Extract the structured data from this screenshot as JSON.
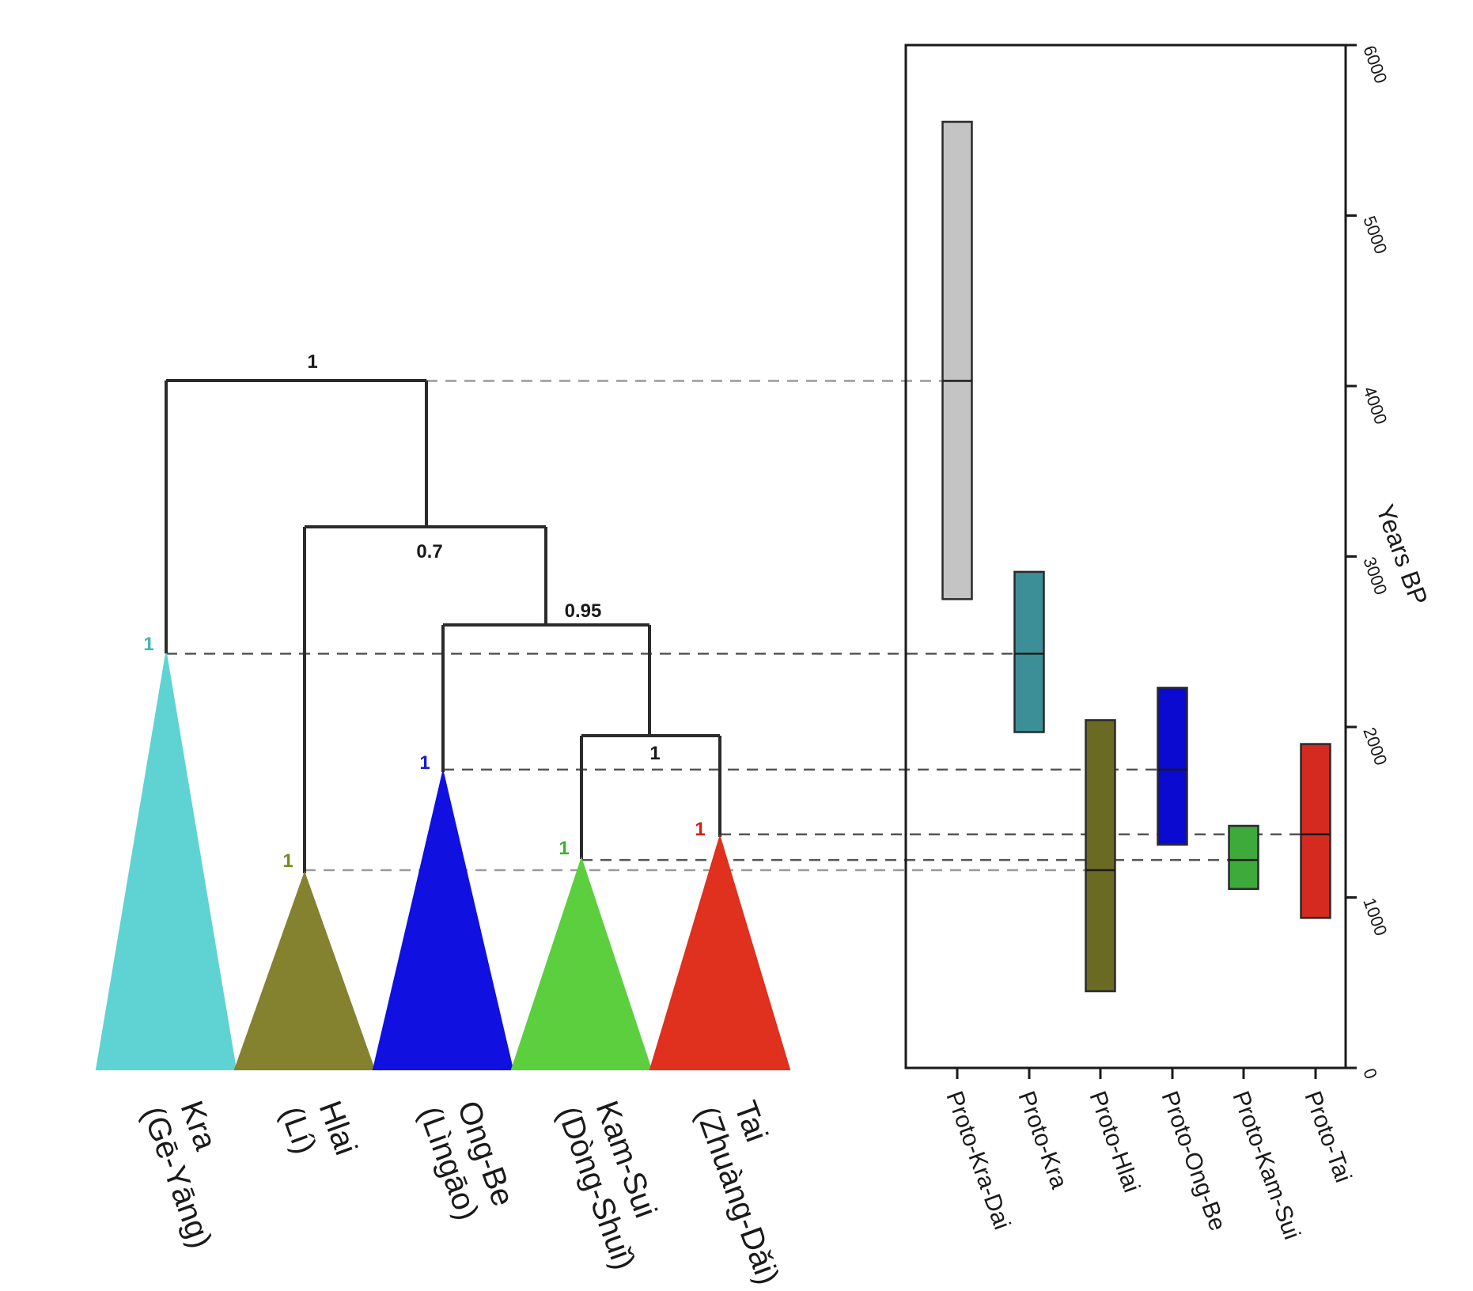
{
  "chart_data": [
    {
      "type": "tree",
      "clades": [
        {
          "key": "kra",
          "name": "Kra",
          "alt_name": "(Gē-Yāng)",
          "color": "#5fd3d3",
          "support": "1",
          "support_color": "#3fb8b8"
        },
        {
          "key": "hlai",
          "name": "Hlai",
          "alt_name": "(Lí)",
          "color": "#84822e",
          "support": "1",
          "support_color": "#7a8a20"
        },
        {
          "key": "ongbe",
          "name": "Ong-Be",
          "alt_name": "(Lìngāo)",
          "color": "#1010e0",
          "support": "1",
          "support_color": "#1a1ad0"
        },
        {
          "key": "kamsui",
          "name": "Kam-Sui",
          "alt_name": "(Dòng-Shuǐ)",
          "color": "#5ccf3e",
          "support": "1",
          "support_color": "#3fb030"
        },
        {
          "key": "tai",
          "name": "Tai",
          "alt_name": "(Zhuàng-Dǎi)",
          "color": "#e0301e",
          "support": "1",
          "support_color": "#d02010"
        }
      ],
      "internal_nodes": [
        {
          "key": "root",
          "support": "1"
        },
        {
          "key": "hlai_rest",
          "support": "0.7"
        },
        {
          "key": "ongbe_rest",
          "support": "0.95"
        },
        {
          "key": "kamsui_tai",
          "support": "1"
        }
      ]
    },
    {
      "type": "boxplot",
      "ylabel": "Years BP",
      "ylim": [
        0,
        6000
      ],
      "yticks": [
        0,
        1000,
        2000,
        3000,
        4000,
        5000,
        6000
      ],
      "categories": [
        "Proto-Kra-Dai",
        "Proto-Kra",
        "Proto-Hlai",
        "Proto-Ong-Be",
        "Proto-Kam-Sui",
        "Proto-Tai"
      ],
      "intervals": [
        {
          "low": 2750,
          "high": 5550,
          "median": 4030,
          "color": "#c4c4c4"
        },
        {
          "low": 1970,
          "high": 2910,
          "median": 2430,
          "color": "#3c8f96"
        },
        {
          "low": 450,
          "high": 2040,
          "median": 1160,
          "color": "#6b6a22"
        },
        {
          "low": 1310,
          "high": 2230,
          "median": 1750,
          "color": "#0a0ad0"
        },
        {
          "low": 1050,
          "high": 1420,
          "median": 1220,
          "color": "#3faa3c"
        },
        {
          "low": 880,
          "high": 1900,
          "median": 1370,
          "color": "#d42a20"
        }
      ]
    }
  ]
}
